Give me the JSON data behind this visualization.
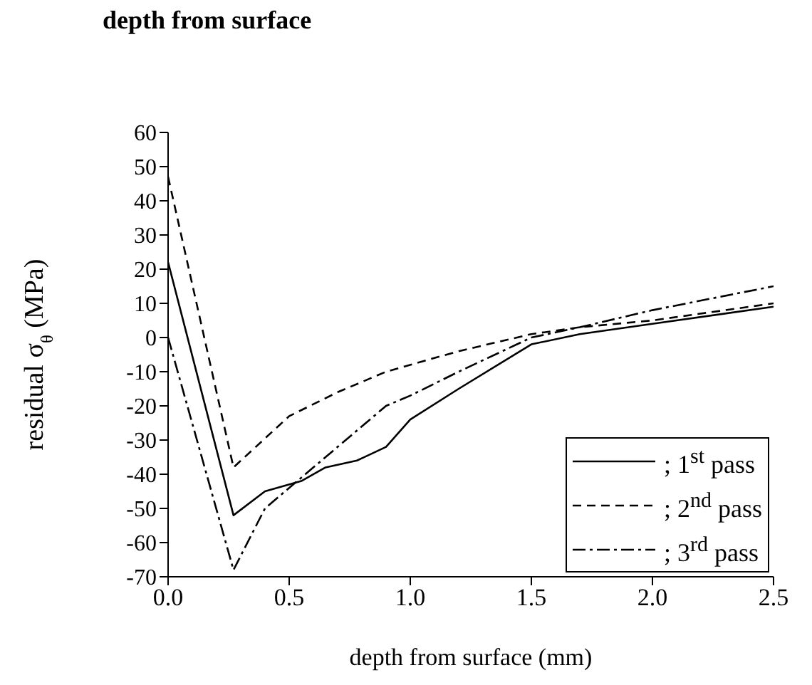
{
  "chart_data": {
    "type": "line",
    "title": "depth from surface",
    "xlabel": "depth from surface (mm)",
    "ylabel": "residual σ$_{θ}$ (MPa)",
    "xlim": [
      0,
      2.5
    ],
    "xticks": [
      {
        "value": 0,
        "label": "0.0"
      },
      {
        "value": 0.5,
        "label": "0.5"
      },
      {
        "value": 1,
        "label": "1.0"
      },
      {
        "value": 1.5,
        "label": "1.5"
      },
      {
        "value": 2,
        "label": "2.0"
      },
      {
        "value": 2.5,
        "label": "2.5"
      }
    ],
    "ylim": [
      -70,
      60
    ],
    "yticks": [
      -70,
      -60,
      -50,
      -40,
      -30,
      -20,
      -10,
      0,
      10,
      20,
      30,
      40,
      50,
      60
    ],
    "grid": false,
    "legend": "bottom right",
    "marker": "none",
    "series": [
      {
        "name": "; 1$^{st}$ pass",
        "color": "#000000",
        "line_style": "solid",
        "x": [
          0,
          0.27,
          0.4,
          0.55,
          0.65,
          0.78,
          0.9,
          1.0,
          1.2,
          1.5,
          1.7,
          2.0,
          2.5
        ],
        "values": [
          22,
          -52,
          -45,
          -42,
          -38,
          -36,
          -32,
          -24,
          -15,
          -2,
          1,
          4,
          9
        ]
      },
      {
        "name": "; 2$^{nd}$ pass",
        "color": "#000000",
        "line_style": "dashed",
        "x": [
          0,
          0.27,
          0.5,
          0.7,
          0.9,
          1.2,
          1.5,
          1.7,
          2.0,
          2.5
        ],
        "values": [
          47,
          -38,
          -23,
          -16,
          -10,
          -4,
          1,
          3,
          5,
          10
        ]
      },
      {
        "name": "; 3$^{rd}$ pass",
        "color": "#000000",
        "line_style": "dashdot",
        "x": [
          0,
          0.27,
          0.4,
          0.7,
          0.9,
          1.0,
          1.2,
          1.5,
          1.7,
          2.0,
          2.5
        ],
        "values": [
          0,
          -68,
          -50,
          -32,
          -20,
          -17,
          -10,
          0,
          3,
          8,
          15
        ]
      }
    ]
  }
}
